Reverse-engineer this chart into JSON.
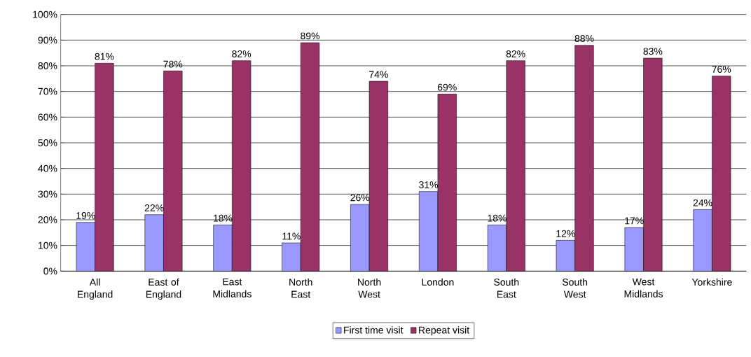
{
  "chart_data": {
    "type": "bar",
    "categories": [
      "All England",
      "East of England",
      "East Midlands",
      "North East",
      "North West",
      "London",
      "South East",
      "South West",
      "West Midlands",
      "Yorkshire"
    ],
    "series": [
      {
        "name": "First time visit",
        "color": "#9999ff",
        "values": [
          19,
          22,
          18,
          11,
          26,
          31,
          18,
          12,
          17,
          24
        ],
        "value_labels": [
          "19%",
          "22%",
          "18%",
          "11%",
          "26%",
          "31%",
          "18%",
          "12%",
          "17%",
          "24%"
        ]
      },
      {
        "name": "Repeat visit",
        "color": "#993366",
        "values": [
          81,
          78,
          82,
          89,
          74,
          69,
          82,
          88,
          83,
          76
        ],
        "value_labels": [
          "81%",
          "78%",
          "82%",
          "89%",
          "74%",
          "69%",
          "82%",
          "88%",
          "83%",
          "76%"
        ]
      }
    ],
    "ylim": [
      0,
      100
    ],
    "yticks": [
      {
        "value": 0,
        "label": "0%"
      },
      {
        "value": 10,
        "label": "10%"
      },
      {
        "value": 20,
        "label": "20%"
      },
      {
        "value": 30,
        "label": "30%"
      },
      {
        "value": 40,
        "label": "40%"
      },
      {
        "value": 50,
        "label": "50%"
      },
      {
        "value": 60,
        "label": "60%"
      },
      {
        "value": 70,
        "label": "70%"
      },
      {
        "value": 80,
        "label": "80%"
      },
      {
        "value": 90,
        "label": "90%"
      },
      {
        "value": 100,
        "label": "100%"
      }
    ],
    "grid": "y",
    "legend": "bottom"
  }
}
